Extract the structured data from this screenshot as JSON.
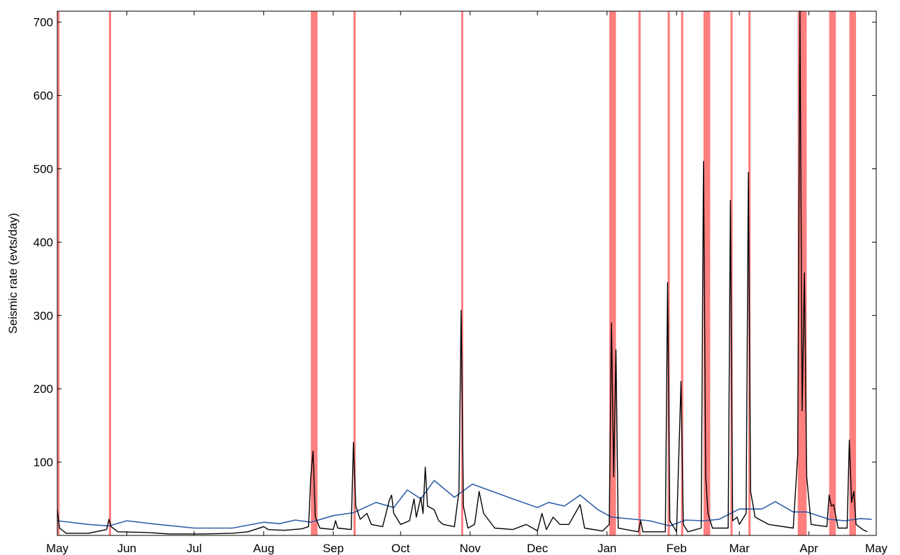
{
  "chart_data": {
    "type": "line",
    "title": "",
    "xlabel": "",
    "ylabel": "Seismic rate (evts/day)",
    "x_axis": {
      "type": "date",
      "domain": [
        "2014-05-01",
        "2015-05-01"
      ],
      "tick_dates": [
        "2014-05-01",
        "2014-06-01",
        "2014-07-01",
        "2014-08-01",
        "2014-09-01",
        "2014-10-01",
        "2014-11-01",
        "2014-12-01",
        "2015-01-01",
        "2015-02-01",
        "2015-03-01",
        "2015-04-01",
        "2015-05-01"
      ],
      "tick_labels": [
        "May",
        "Jun",
        "Jul",
        "Aug",
        "Sep",
        "Oct",
        "Nov",
        "Dec",
        "Jan",
        "Feb",
        "Mar",
        "Apr",
        "May"
      ]
    },
    "ylim": [
      0,
      715
    ],
    "y_ticks": [
      100,
      200,
      300,
      400,
      500,
      600,
      700
    ],
    "grid": false,
    "legend": "none",
    "colors": {
      "rate": "#000000",
      "background": "#2f5ea8",
      "shading": "#ff7f7f"
    },
    "shaded_periods": [
      [
        "2014-05-01",
        "2014-05-02"
      ],
      [
        "2014-05-24",
        "2014-05-25"
      ],
      [
        "2014-08-22",
        "2014-08-25"
      ],
      [
        "2014-09-10",
        "2014-09-11"
      ],
      [
        "2014-10-28",
        "2014-10-28"
      ],
      [
        "2015-01-02",
        "2015-01-05"
      ],
      [
        "2015-01-15",
        "2015-01-16"
      ],
      [
        "2015-01-28",
        "2015-01-29"
      ],
      [
        "2015-02-03",
        "2015-02-04"
      ],
      [
        "2015-02-13",
        "2015-02-16"
      ],
      [
        "2015-02-25",
        "2015-02-26"
      ],
      [
        "2015-03-05",
        "2015-03-06"
      ],
      [
        "2015-03-27",
        "2015-03-31"
      ],
      [
        "2015-04-10",
        "2015-04-13"
      ],
      [
        "2015-04-19",
        "2015-04-22"
      ]
    ],
    "series": [
      {
        "id": "rate",
        "points": [
          [
            "2014-05-01",
            35
          ],
          [
            "2014-05-02",
            10
          ],
          [
            "2014-05-05",
            3
          ],
          [
            "2014-05-15",
            3
          ],
          [
            "2014-05-23",
            8
          ],
          [
            "2014-05-24",
            22
          ],
          [
            "2014-05-25",
            12
          ],
          [
            "2014-05-28",
            5
          ],
          [
            "2014-06-10",
            4
          ],
          [
            "2014-06-20",
            2
          ],
          [
            "2014-07-05",
            2
          ],
          [
            "2014-07-18",
            3
          ],
          [
            "2014-07-25",
            5
          ],
          [
            "2014-08-01",
            12
          ],
          [
            "2014-08-03",
            8
          ],
          [
            "2014-08-10",
            7
          ],
          [
            "2014-08-18",
            9
          ],
          [
            "2014-08-21",
            12
          ],
          [
            "2014-08-22",
            80
          ],
          [
            "2014-08-23",
            115
          ],
          [
            "2014-08-24",
            25
          ],
          [
            "2014-08-26",
            10
          ],
          [
            "2014-09-01",
            8
          ],
          [
            "2014-09-02",
            20
          ],
          [
            "2014-09-03",
            10
          ],
          [
            "2014-09-09",
            8
          ],
          [
            "2014-09-10",
            127
          ],
          [
            "2014-09-11",
            40
          ],
          [
            "2014-09-13",
            22
          ],
          [
            "2014-09-16",
            30
          ],
          [
            "2014-09-18",
            15
          ],
          [
            "2014-09-23",
            12
          ],
          [
            "2014-09-26",
            48
          ],
          [
            "2014-09-27",
            55
          ],
          [
            "2014-09-28",
            30
          ],
          [
            "2014-10-01",
            15
          ],
          [
            "2014-10-05",
            20
          ],
          [
            "2014-10-07",
            50
          ],
          [
            "2014-10-08",
            25
          ],
          [
            "2014-10-10",
            52
          ],
          [
            "2014-10-11",
            30
          ],
          [
            "2014-10-12",
            93
          ],
          [
            "2014-10-13",
            40
          ],
          [
            "2014-10-16",
            35
          ],
          [
            "2014-10-18",
            20
          ],
          [
            "2014-10-20",
            15
          ],
          [
            "2014-10-25",
            12
          ],
          [
            "2014-10-27",
            60
          ],
          [
            "2014-10-28",
            307
          ],
          [
            "2014-10-29",
            40
          ],
          [
            "2014-10-31",
            10
          ],
          [
            "2014-11-03",
            15
          ],
          [
            "2014-11-05",
            60
          ],
          [
            "2014-11-07",
            30
          ],
          [
            "2014-11-12",
            10
          ],
          [
            "2014-11-20",
            8
          ],
          [
            "2014-11-26",
            15
          ],
          [
            "2014-11-30",
            8
          ],
          [
            "2014-12-01",
            6
          ],
          [
            "2014-12-03",
            30
          ],
          [
            "2014-12-05",
            8
          ],
          [
            "2014-12-08",
            25
          ],
          [
            "2014-12-11",
            15
          ],
          [
            "2014-12-15",
            15
          ],
          [
            "2014-12-20",
            42
          ],
          [
            "2014-12-22",
            10
          ],
          [
            "2014-12-30",
            6
          ],
          [
            "2015-01-02",
            15
          ],
          [
            "2015-01-03",
            290
          ],
          [
            "2015-01-04",
            80
          ],
          [
            "2015-01-05",
            253
          ],
          [
            "2015-01-06",
            10
          ],
          [
            "2015-01-15",
            5
          ],
          [
            "2015-01-16",
            20
          ],
          [
            "2015-01-17",
            5
          ],
          [
            "2015-01-27",
            5
          ],
          [
            "2015-01-28",
            345
          ],
          [
            "2015-01-29",
            20
          ],
          [
            "2015-02-01",
            5
          ],
          [
            "2015-02-03",
            210
          ],
          [
            "2015-02-04",
            15
          ],
          [
            "2015-02-06",
            5
          ],
          [
            "2015-02-12",
            10
          ],
          [
            "2015-02-13",
            510
          ],
          [
            "2015-02-14",
            80
          ],
          [
            "2015-02-15",
            30
          ],
          [
            "2015-02-17",
            10
          ],
          [
            "2015-02-24",
            10
          ],
          [
            "2015-02-25",
            457
          ],
          [
            "2015-02-26",
            20
          ],
          [
            "2015-02-28",
            25
          ],
          [
            "2015-03-01",
            15
          ],
          [
            "2015-03-04",
            30
          ],
          [
            "2015-03-05",
            495
          ],
          [
            "2015-03-06",
            60
          ],
          [
            "2015-03-08",
            25
          ],
          [
            "2015-03-14",
            15
          ],
          [
            "2015-03-25",
            10
          ],
          [
            "2015-03-27",
            110
          ],
          [
            "2015-03-28",
            715
          ],
          [
            "2015-03-29",
            170
          ],
          [
            "2015-03-30",
            358
          ],
          [
            "2015-03-31",
            80
          ],
          [
            "2015-04-02",
            15
          ],
          [
            "2015-04-09",
            12
          ],
          [
            "2015-04-10",
            55
          ],
          [
            "2015-04-11",
            40
          ],
          [
            "2015-04-12",
            42
          ],
          [
            "2015-04-14",
            10
          ],
          [
            "2015-04-18",
            10
          ],
          [
            "2015-04-19",
            130
          ],
          [
            "2015-04-20",
            45
          ],
          [
            "2015-04-21",
            60
          ],
          [
            "2015-04-22",
            15
          ],
          [
            "2015-04-25",
            8
          ],
          [
            "2015-04-27",
            5
          ]
        ]
      },
      {
        "id": "background",
        "points": [
          [
            "2014-05-01",
            20
          ],
          [
            "2014-05-15",
            15
          ],
          [
            "2014-05-24",
            13
          ],
          [
            "2014-06-01",
            20
          ],
          [
            "2014-06-15",
            15
          ],
          [
            "2014-07-01",
            10
          ],
          [
            "2014-07-18",
            10
          ],
          [
            "2014-08-01",
            18
          ],
          [
            "2014-08-08",
            16
          ],
          [
            "2014-08-15",
            21
          ],
          [
            "2014-08-22",
            18
          ],
          [
            "2014-09-01",
            27
          ],
          [
            "2014-09-10",
            31
          ],
          [
            "2014-09-20",
            45
          ],
          [
            "2014-09-28",
            38
          ],
          [
            "2014-10-04",
            62
          ],
          [
            "2014-10-10",
            50
          ],
          [
            "2014-10-16",
            75
          ],
          [
            "2014-10-25",
            52
          ],
          [
            "2014-11-02",
            70
          ],
          [
            "2014-11-20",
            50
          ],
          [
            "2014-12-01",
            38
          ],
          [
            "2014-12-06",
            45
          ],
          [
            "2014-12-13",
            40
          ],
          [
            "2014-12-20",
            55
          ],
          [
            "2014-12-28",
            35
          ],
          [
            "2015-01-03",
            25
          ],
          [
            "2015-01-20",
            20
          ],
          [
            "2015-01-29",
            13
          ],
          [
            "2015-02-05",
            21
          ],
          [
            "2015-02-13",
            20
          ],
          [
            "2015-02-20",
            22
          ],
          [
            "2015-03-01",
            36
          ],
          [
            "2015-03-11",
            36
          ],
          [
            "2015-03-17",
            46
          ],
          [
            "2015-03-25",
            32
          ],
          [
            "2015-03-31",
            32
          ],
          [
            "2015-04-10",
            22
          ],
          [
            "2015-04-17",
            20
          ],
          [
            "2015-04-24",
            23
          ],
          [
            "2015-04-29",
            22
          ]
        ]
      }
    ]
  }
}
